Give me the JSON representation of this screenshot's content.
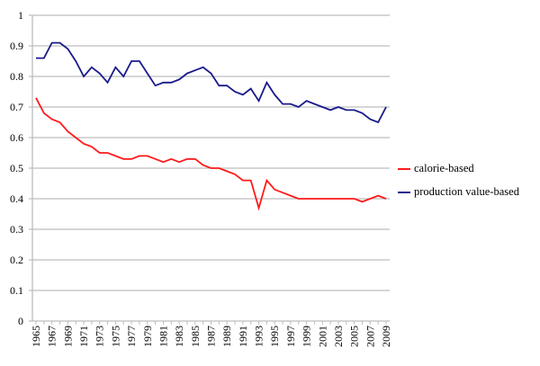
{
  "chart_data": {
    "type": "line",
    "title": "",
    "xlabel": "",
    "ylabel": "",
    "ylim": [
      0,
      1
    ],
    "yticks": [
      "0",
      "0.1",
      "0.2",
      "0.3",
      "0.4",
      "0.5",
      "0.6",
      "0.7",
      "0.8",
      "0.9",
      "1"
    ],
    "x": [
      1965,
      1966,
      1967,
      1968,
      1969,
      1970,
      1971,
      1972,
      1973,
      1974,
      1975,
      1976,
      1977,
      1978,
      1979,
      1980,
      1981,
      1982,
      1983,
      1984,
      1985,
      1986,
      1987,
      1988,
      1989,
      1990,
      1991,
      1992,
      1993,
      1994,
      1995,
      1996,
      1997,
      1998,
      1999,
      2000,
      2001,
      2002,
      2003,
      2004,
      2005,
      2006,
      2007,
      2008,
      2009
    ],
    "xticks": [
      "1965",
      "1967",
      "1969",
      "1971",
      "1973",
      "1975",
      "1977",
      "1979",
      "1981",
      "1983",
      "1985",
      "1987",
      "1989",
      "1991",
      "1993",
      "1995",
      "1997",
      "1999",
      "2001",
      "2003",
      "2005",
      "2007",
      "2009"
    ],
    "grid": true,
    "legend_position": "right",
    "series": [
      {
        "name": "calorie-based",
        "color": "#ff1a1a",
        "values": [
          0.73,
          0.68,
          0.66,
          0.65,
          0.62,
          0.6,
          0.58,
          0.57,
          0.55,
          0.55,
          0.54,
          0.53,
          0.53,
          0.54,
          0.54,
          0.53,
          0.52,
          0.53,
          0.52,
          0.53,
          0.53,
          0.51,
          0.5,
          0.5,
          0.49,
          0.48,
          0.46,
          0.46,
          0.37,
          0.46,
          0.43,
          0.42,
          0.41,
          0.4,
          0.4,
          0.4,
          0.4,
          0.4,
          0.4,
          0.4,
          0.4,
          0.39,
          0.4,
          0.41,
          0.4
        ]
      },
      {
        "name": "production value-based",
        "color": "#1a1a8c",
        "values": [
          0.86,
          0.86,
          0.91,
          0.91,
          0.89,
          0.85,
          0.8,
          0.83,
          0.81,
          0.78,
          0.83,
          0.8,
          0.85,
          0.85,
          0.81,
          0.77,
          0.78,
          0.78,
          0.79,
          0.81,
          0.82,
          0.83,
          0.81,
          0.77,
          0.77,
          0.75,
          0.74,
          0.76,
          0.72,
          0.78,
          0.74,
          0.71,
          0.71,
          0.7,
          0.72,
          0.71,
          0.7,
          0.69,
          0.7,
          0.69,
          0.69,
          0.68,
          0.66,
          0.65,
          0.7
        ]
      }
    ]
  }
}
